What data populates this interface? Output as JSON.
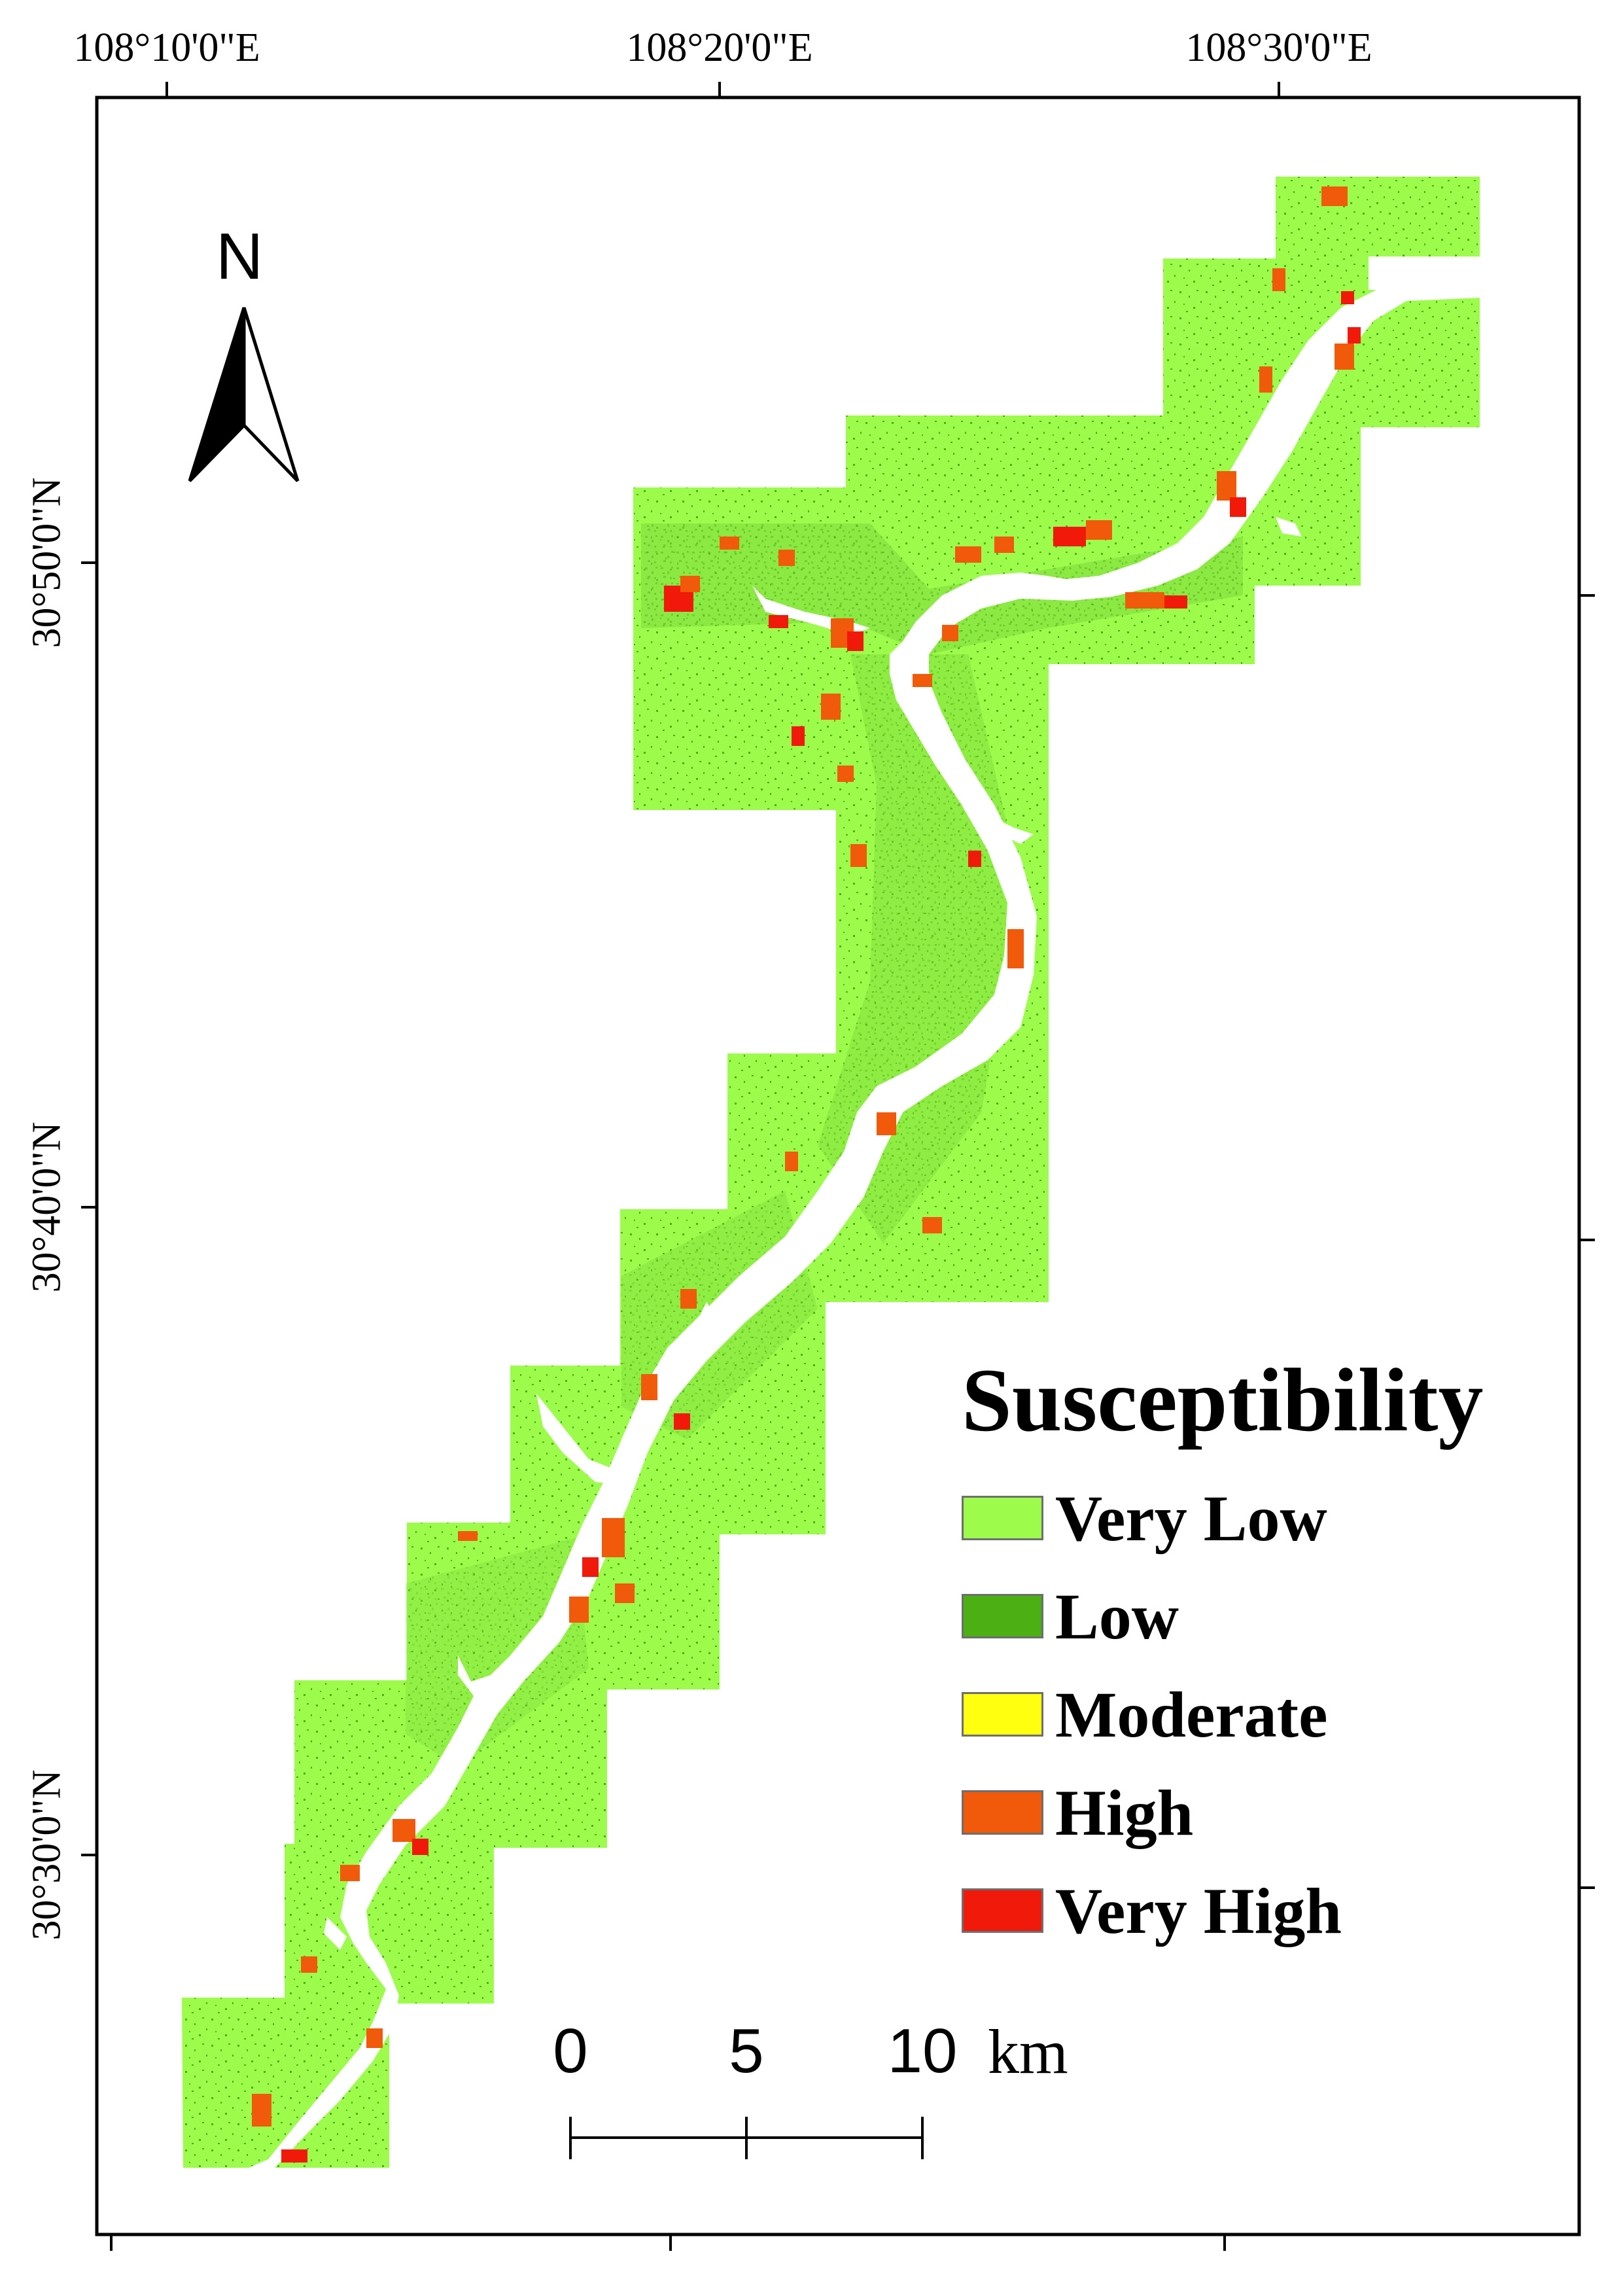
{
  "map": {
    "longitude_labels": [
      "108°10'0\"E",
      "108°20'0\"E",
      "108°30'0\"E"
    ],
    "latitude_labels": [
      "30°50'0\"N",
      "30°40'0\"N",
      "30°30'0\"N"
    ]
  },
  "north_arrow": {
    "label": "N",
    "icon": "north-arrow-icon"
  },
  "legend": {
    "title": "Susceptibility",
    "items": [
      {
        "label": "Very Low",
        "color": "#9cfb4b"
      },
      {
        "label": "Low",
        "color": "#4caf14"
      },
      {
        "label": "Moderate",
        "color": "#ffff0f"
      },
      {
        "label": "High",
        "color": "#f05a0a"
      },
      {
        "label": "Very High",
        "color": "#f0190a"
      }
    ]
  },
  "scale_bar": {
    "labels": [
      "0",
      "5",
      "10"
    ],
    "unit": "km"
  }
}
